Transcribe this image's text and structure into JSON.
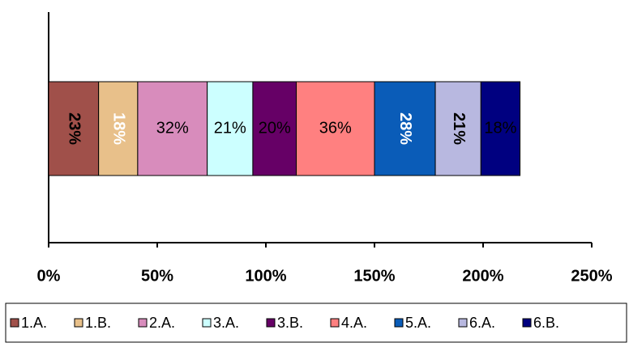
{
  "chart_data": {
    "type": "stacked_bar_horizontal",
    "categories": [
      null
    ],
    "series": [
      {
        "name": "1.A.",
        "color": "#a0504a",
        "values": [
          23
        ],
        "value_labels": [
          "23%"
        ]
      },
      {
        "name": "1.B.",
        "color": "#e8c08a",
        "values": [
          18
        ],
        "value_labels": [
          "18%"
        ]
      },
      {
        "name": "2.A.",
        "color": "#d88cbc",
        "values": [
          32
        ],
        "value_labels": [
          "32%"
        ]
      },
      {
        "name": "3.A.",
        "color": "#ccffff",
        "values": [
          21
        ],
        "value_labels": [
          "21%"
        ]
      },
      {
        "name": "3.B.",
        "color": "#660066",
        "values": [
          20
        ],
        "value_labels": [
          "20%"
        ]
      },
      {
        "name": "4.A.",
        "color": "#ff8080",
        "values": [
          36
        ],
        "value_labels": [
          "36%"
        ]
      },
      {
        "name": "5.A.",
        "color": "#0a5cb8",
        "values": [
          28
        ],
        "value_labels": [
          "28%"
        ]
      },
      {
        "name": "6.A.",
        "color": "#b8b8e0",
        "values": [
          21
        ],
        "value_labels": [
          "21%"
        ]
      },
      {
        "name": "6.B.",
        "color": "#000080",
        "values": [
          18
        ],
        "value_labels": [
          "18%"
        ]
      }
    ],
    "xlim": [
      0,
      250
    ],
    "xticks": [
      {
        "value": 0,
        "label": "0%"
      },
      {
        "value": 50,
        "label": "50%"
      },
      {
        "value": 100,
        "label": "100%"
      },
      {
        "value": 150,
        "label": "150%"
      },
      {
        "value": 200,
        "label": "200%"
      },
      {
        "value": 250,
        "label": "250%"
      }
    ],
    "legend": "bottom"
  }
}
